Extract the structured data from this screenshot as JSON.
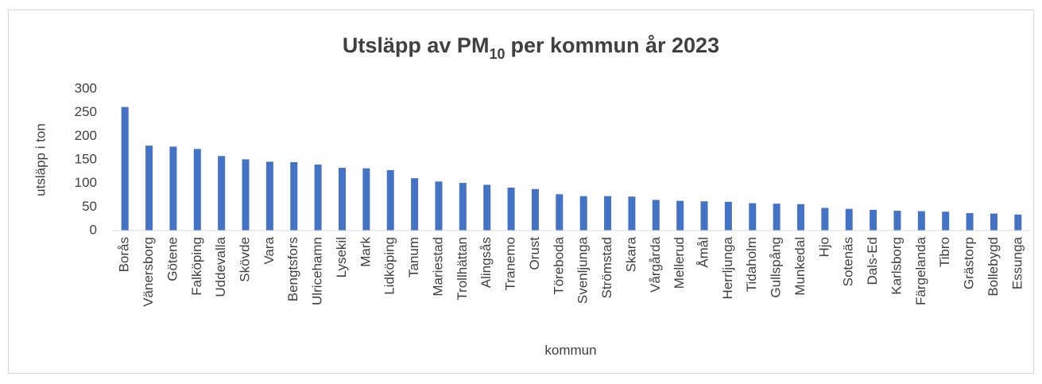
{
  "chart_data": {
    "type": "bar",
    "title": [
      "Utsläpp av PM",
      "10",
      "per kommun år 2023"
    ],
    "x_label": "kommun",
    "y_label": "utsläpp i ton",
    "categories": [
      "Borås",
      "Vänersborg",
      "Götene",
      "Falköping",
      "Uddevalla",
      "Skövde",
      "Vara",
      "Bengtsfors",
      "Ulricehamn",
      "Lysekil",
      "Mark",
      "Lidköping",
      "Tanum",
      "Mariestad",
      "Trollhättan",
      "Alingsås",
      "Tranemo",
      "Orust",
      "Töreboda",
      "Svenljunga",
      "Strömstad",
      "Skara",
      "Vårgårda",
      "Mellerud",
      "Åmål",
      "Herrljunga",
      "Tidaholm",
      "Gullspång",
      "Munkedal",
      "Hjo",
      "Sotenäs",
      "Dals-Ed",
      "Karlsborg",
      "Färgelanda",
      "Tibro",
      "Grästorp",
      "Bollebygd",
      "Essunga"
    ],
    "values": [
      262,
      180,
      178,
      173,
      158,
      151,
      146,
      145,
      140,
      133,
      132,
      128,
      111,
      104,
      101,
      97,
      91,
      88,
      77,
      73,
      73,
      72,
      65,
      63,
      62,
      61,
      58,
      57,
      56,
      48,
      46,
      44,
      42,
      41,
      40,
      37,
      36,
      34
    ],
    "color": "#4472c4",
    "ylim": [
      0,
      300
    ],
    "yticks": [
      0,
      50,
      100,
      150,
      200,
      250,
      300
    ],
    "grid": false
  }
}
